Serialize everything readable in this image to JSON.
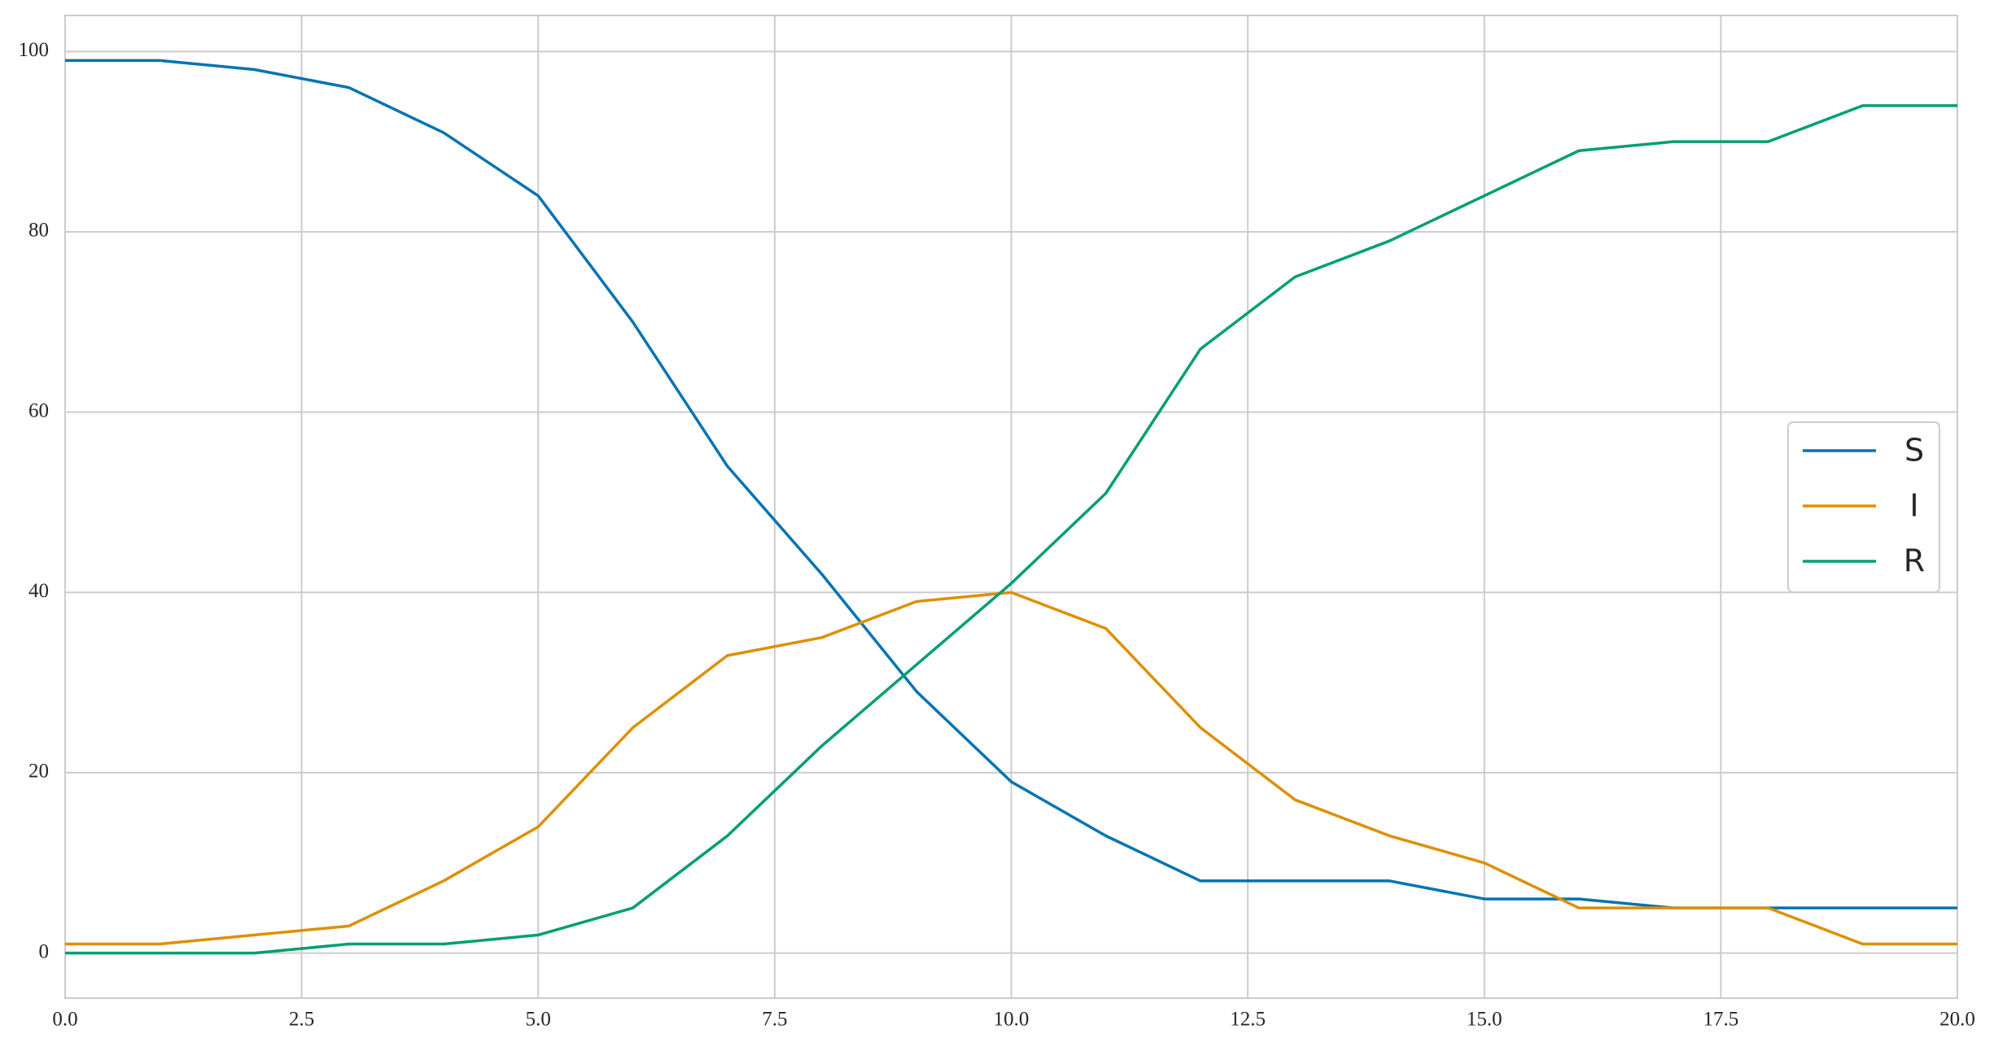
{
  "chart_data": {
    "type": "line",
    "x": [
      0,
      1,
      2,
      3,
      4,
      5,
      6,
      7,
      8,
      9,
      10,
      11,
      12,
      13,
      14,
      15,
      16,
      17,
      18,
      19,
      20
    ],
    "series": [
      {
        "name": "S",
        "color": "#0173b2",
        "values": [
          99,
          99,
          98,
          96,
          91,
          84,
          70,
          54,
          42,
          29,
          19,
          13,
          8,
          8,
          8,
          6,
          6,
          5,
          5,
          5,
          5
        ]
      },
      {
        "name": "I",
        "color": "#de8f05",
        "values": [
          1,
          1,
          2,
          3,
          8,
          14,
          25,
          33,
          35,
          39,
          40,
          36,
          25,
          17,
          13,
          10,
          5,
          5,
          5,
          1,
          1
        ]
      },
      {
        "name": "R",
        "color": "#029e73",
        "values": [
          0,
          0,
          0,
          1,
          1,
          2,
          5,
          13,
          23,
          32,
          41,
          51,
          67,
          75,
          79,
          84,
          89,
          90,
          90,
          94,
          94
        ]
      }
    ],
    "xlim": [
      0,
      20
    ],
    "xticks": [
      {
        "value": 0,
        "label": "0.0"
      },
      {
        "value": 2.5,
        "label": "2.5"
      },
      {
        "value": 5,
        "label": "5.0"
      },
      {
        "value": 7.5,
        "label": "7.5"
      },
      {
        "value": 10,
        "label": "10.0"
      },
      {
        "value": 12.5,
        "label": "12.5"
      },
      {
        "value": 15,
        "label": "15.0"
      },
      {
        "value": 17.5,
        "label": "17.5"
      },
      {
        "value": 20,
        "label": "20.0"
      }
    ],
    "ylim": [
      -5,
      104
    ],
    "yticks": [
      0,
      20,
      40,
      60,
      80,
      100
    ],
    "grid": true,
    "legend": "right"
  }
}
